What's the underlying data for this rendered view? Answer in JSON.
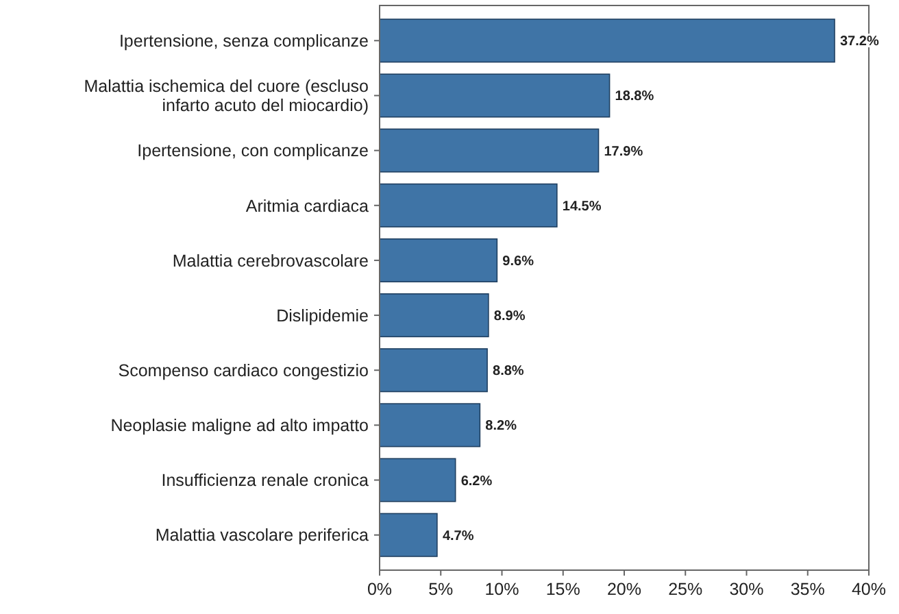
{
  "chart_data": {
    "type": "bar",
    "orientation": "horizontal",
    "categories": [
      "Ipertensione, senza complicanze",
      "Malattia ischemica del cuore (escluso infarto acuto del miocardio)",
      "Ipertensione, con complicanze",
      "Aritmia cardiaca",
      "Malattia cerebrovascolare",
      "Dislipidemie",
      "Scompenso cardiaco congestizio",
      "Neoplasie maligne ad alto impatto",
      "Insufficienza renale cronica",
      "Malattia vascolare periferica"
    ],
    "values": [
      37.2,
      18.8,
      17.9,
      14.5,
      9.6,
      8.9,
      8.8,
      8.2,
      6.2,
      4.7
    ],
    "value_labels": [
      "37.2%",
      "18.8%",
      "17.9%",
      "14.5%",
      "9.6%",
      "8.9%",
      "8.8%",
      "8.2%",
      "6.2%",
      "4.7%"
    ],
    "color": "#3f74a6",
    "xlim": [
      0,
      40
    ],
    "xticks": [
      {
        "value": 0,
        "label": "0%"
      },
      {
        "value": 5,
        "label": "5%"
      },
      {
        "value": 10,
        "label": "10%"
      },
      {
        "value": 15,
        "label": "15%"
      },
      {
        "value": 20,
        "label": "20%"
      },
      {
        "value": 25,
        "label": "25%"
      },
      {
        "value": 30,
        "label": "30%"
      },
      {
        "value": 35,
        "label": "35%"
      },
      {
        "value": 40,
        "label": "40%"
      }
    ],
    "grid": false
  }
}
